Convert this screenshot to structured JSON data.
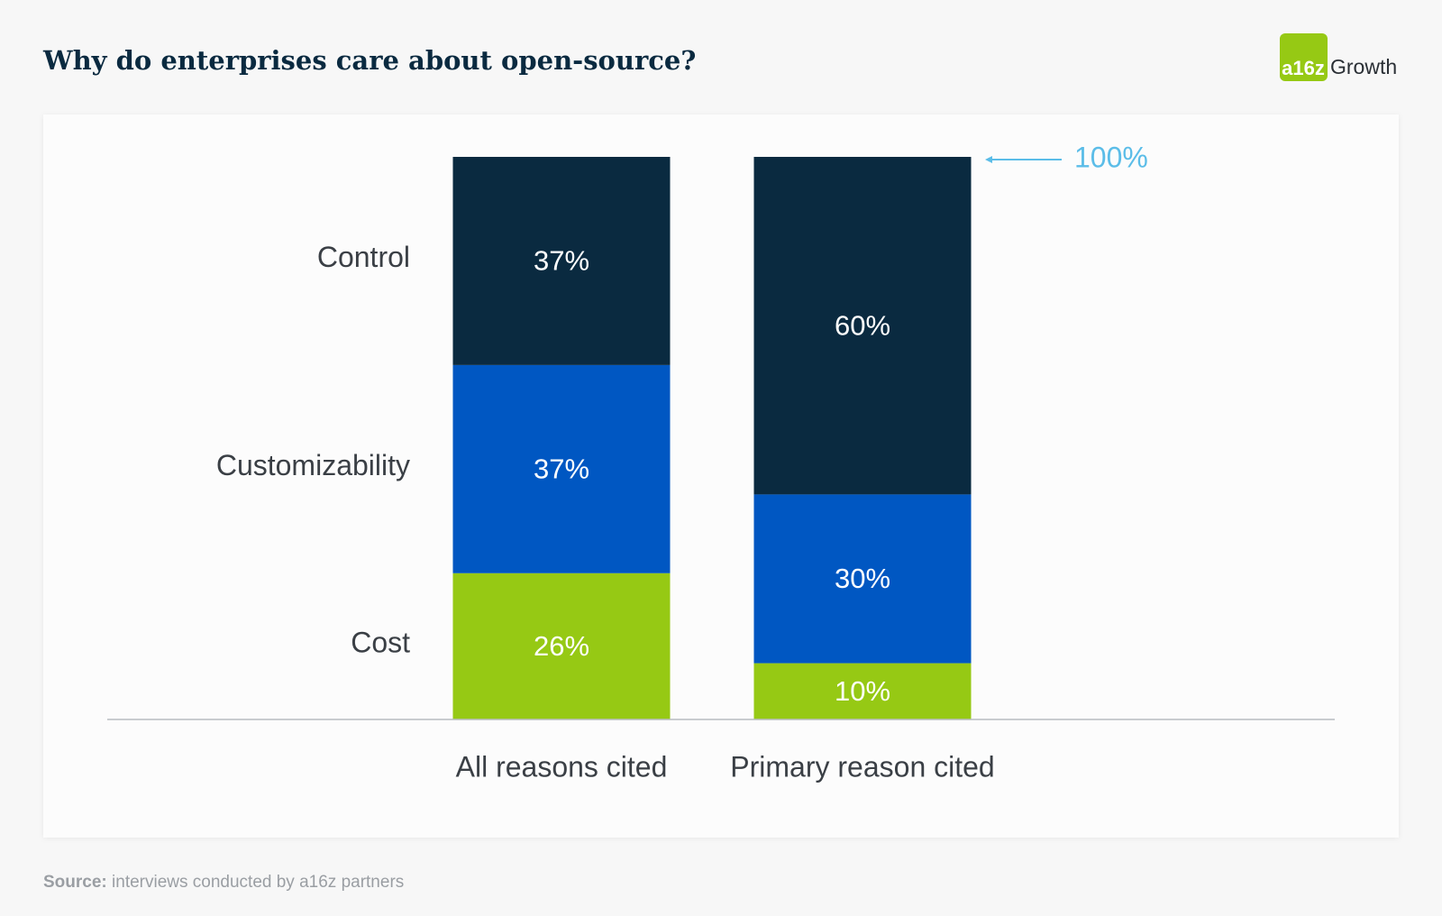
{
  "chart_data": {
    "type": "stacked-bar",
    "title": "Why do enterprises care about open-source?",
    "categories": [
      "All reasons cited",
      "Primary reason cited"
    ],
    "series": [
      {
        "name": "Cost",
        "color": "#96c914",
        "values": [
          26,
          10
        ],
        "value_labels": [
          "26%",
          "10%"
        ]
      },
      {
        "name": "Customizability",
        "color": "#0057c2",
        "values": [
          37,
          30
        ],
        "value_labels": [
          "37%",
          "30%"
        ]
      },
      {
        "name": "Control",
        "color": "#0a2a40",
        "values": [
          37,
          60
        ],
        "value_labels": [
          "37%",
          "60%"
        ]
      }
    ],
    "ylim": [
      0,
      100
    ],
    "yticks": [
      {
        "value": 100,
        "label": "100%"
      }
    ],
    "source_label": "Source:",
    "source_text": "interviews conducted by a16z partners",
    "brand": [
      "a16z",
      "Growth"
    ]
  }
}
